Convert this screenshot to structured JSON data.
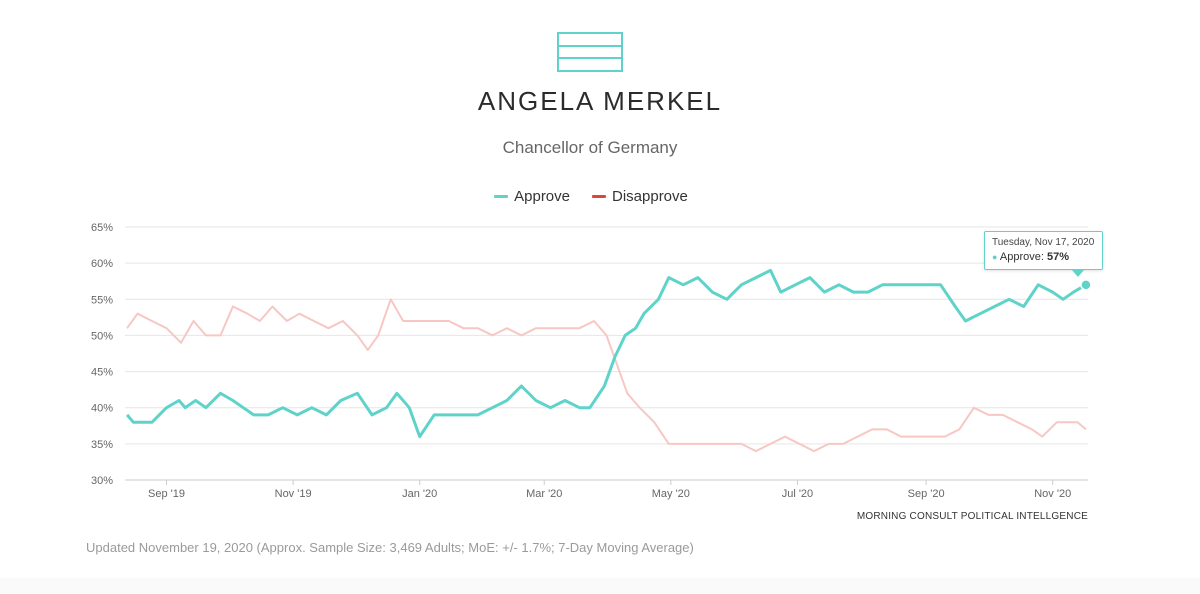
{
  "header": {
    "title": "ANGELA MERKEL",
    "subtitle": "Chancellor of Germany"
  },
  "legend": {
    "approve_label": "Approve",
    "disapprove_label": "Disapprove"
  },
  "tooltip": {
    "date": "Tuesday, Nov 17, 2020",
    "series_label": "Approve:",
    "value": "57%"
  },
  "credit": "MORNING CONSULT POLITICAL INTELLGENCE",
  "footer_note": "Updated November 19, 2020 (Approx. Sample Size: 3,469 Adults; MoE: +/- 1.7%; 7-Day Moving Average)",
  "colors": {
    "approve": "#5fd3c9",
    "disapprove": "#f7c7c3",
    "disapprove_legend": "#e0453a",
    "grid": "#e6e6e6"
  },
  "chart_data": {
    "type": "line",
    "ylim": [
      30,
      65
    ],
    "y_ticks": [
      "30%",
      "35%",
      "40%",
      "45%",
      "50%",
      "55%",
      "60%",
      "65%"
    ],
    "x_ticks": [
      "Sep '19",
      "Nov '19",
      "Jan '20",
      "Mar '20",
      "May '20",
      "Jul '20",
      "Sep '20",
      "Nov '20"
    ],
    "x_range": [
      "2019-08-12",
      "2020-11-18"
    ],
    "grid": true,
    "legend_position": "top-center",
    "series": [
      {
        "name": "Approve",
        "color": "#5fd3c9",
        "points": [
          [
            "2019-08-13",
            39
          ],
          [
            "2019-08-16",
            38
          ],
          [
            "2019-08-25",
            38
          ],
          [
            "2019-09-01",
            40
          ],
          [
            "2019-09-07",
            41
          ],
          [
            "2019-09-10",
            40
          ],
          [
            "2019-09-15",
            41
          ],
          [
            "2019-09-20",
            40
          ],
          [
            "2019-09-27",
            42
          ],
          [
            "2019-10-03",
            41
          ],
          [
            "2019-10-08",
            40
          ],
          [
            "2019-10-13",
            39
          ],
          [
            "2019-10-20",
            39
          ],
          [
            "2019-10-27",
            40
          ],
          [
            "2019-11-03",
            39
          ],
          [
            "2019-11-10",
            40
          ],
          [
            "2019-11-17",
            39
          ],
          [
            "2019-11-24",
            41
          ],
          [
            "2019-12-02",
            42
          ],
          [
            "2019-12-09",
            39
          ],
          [
            "2019-12-16",
            40
          ],
          [
            "2019-12-21",
            42
          ],
          [
            "2019-12-27",
            40
          ],
          [
            "2020-01-01",
            36
          ],
          [
            "2020-01-08",
            39
          ],
          [
            "2020-01-15",
            39
          ],
          [
            "2020-01-22",
            39
          ],
          [
            "2020-01-29",
            39
          ],
          [
            "2020-02-05",
            40
          ],
          [
            "2020-02-12",
            41
          ],
          [
            "2020-02-19",
            43
          ],
          [
            "2020-02-26",
            41
          ],
          [
            "2020-03-04",
            40
          ],
          [
            "2020-03-11",
            41
          ],
          [
            "2020-03-18",
            40
          ],
          [
            "2020-03-23",
            40
          ],
          [
            "2020-03-30",
            43
          ],
          [
            "2020-04-04",
            47
          ],
          [
            "2020-04-09",
            50
          ],
          [
            "2020-04-14",
            51
          ],
          [
            "2020-04-18",
            53
          ],
          [
            "2020-04-25",
            55
          ],
          [
            "2020-04-30",
            58
          ],
          [
            "2020-05-07",
            57
          ],
          [
            "2020-05-14",
            58
          ],
          [
            "2020-05-21",
            56
          ],
          [
            "2020-05-28",
            55
          ],
          [
            "2020-06-04",
            57
          ],
          [
            "2020-06-11",
            58
          ],
          [
            "2020-06-18",
            59
          ],
          [
            "2020-06-23",
            56
          ],
          [
            "2020-06-30",
            57
          ],
          [
            "2020-07-07",
            58
          ],
          [
            "2020-07-14",
            56
          ],
          [
            "2020-07-21",
            57
          ],
          [
            "2020-07-28",
            56
          ],
          [
            "2020-08-04",
            56
          ],
          [
            "2020-08-11",
            57
          ],
          [
            "2020-08-18",
            57
          ],
          [
            "2020-08-25",
            57
          ],
          [
            "2020-09-01",
            57
          ],
          [
            "2020-09-08",
            57
          ],
          [
            "2020-09-15",
            54
          ],
          [
            "2020-09-20",
            52
          ],
          [
            "2020-09-27",
            53
          ],
          [
            "2020-10-04",
            54
          ],
          [
            "2020-10-11",
            55
          ],
          [
            "2020-10-18",
            54
          ],
          [
            "2020-10-25",
            57
          ],
          [
            "2020-11-01",
            56
          ],
          [
            "2020-11-06",
            55
          ],
          [
            "2020-11-11",
            56
          ],
          [
            "2020-11-17",
            57
          ]
        ]
      },
      {
        "name": "Disapprove",
        "color": "#f7c7c3",
        "points": [
          [
            "2019-08-13",
            51
          ],
          [
            "2019-08-18",
            53
          ],
          [
            "2019-08-25",
            52
          ],
          [
            "2019-09-01",
            51
          ],
          [
            "2019-09-08",
            49
          ],
          [
            "2019-09-14",
            52
          ],
          [
            "2019-09-20",
            50
          ],
          [
            "2019-09-27",
            50
          ],
          [
            "2019-10-03",
            54
          ],
          [
            "2019-10-10",
            53
          ],
          [
            "2019-10-16",
            52
          ],
          [
            "2019-10-22",
            54
          ],
          [
            "2019-10-29",
            52
          ],
          [
            "2019-11-04",
            53
          ],
          [
            "2019-11-11",
            52
          ],
          [
            "2019-11-18",
            51
          ],
          [
            "2019-11-25",
            52
          ],
          [
            "2019-12-02",
            50
          ],
          [
            "2019-12-07",
            48
          ],
          [
            "2019-12-12",
            50
          ],
          [
            "2019-12-18",
            55
          ],
          [
            "2019-12-24",
            52
          ],
          [
            "2020-01-01",
            52
          ],
          [
            "2020-01-08",
            52
          ],
          [
            "2020-01-15",
            52
          ],
          [
            "2020-01-22",
            51
          ],
          [
            "2020-01-29",
            51
          ],
          [
            "2020-02-05",
            50
          ],
          [
            "2020-02-12",
            51
          ],
          [
            "2020-02-19",
            50
          ],
          [
            "2020-02-26",
            51
          ],
          [
            "2020-03-04",
            51
          ],
          [
            "2020-03-11",
            51
          ],
          [
            "2020-03-18",
            51
          ],
          [
            "2020-03-25",
            52
          ],
          [
            "2020-03-31",
            50
          ],
          [
            "2020-04-05",
            46
          ],
          [
            "2020-04-10",
            42
          ],
          [
            "2020-04-16",
            40
          ],
          [
            "2020-04-23",
            38
          ],
          [
            "2020-04-30",
            35
          ],
          [
            "2020-05-07",
            35
          ],
          [
            "2020-05-14",
            35
          ],
          [
            "2020-05-21",
            35
          ],
          [
            "2020-05-28",
            35
          ],
          [
            "2020-06-04",
            35
          ],
          [
            "2020-06-11",
            34
          ],
          [
            "2020-06-18",
            35
          ],
          [
            "2020-06-25",
            36
          ],
          [
            "2020-07-02",
            35
          ],
          [
            "2020-07-09",
            34
          ],
          [
            "2020-07-16",
            35
          ],
          [
            "2020-07-23",
            35
          ],
          [
            "2020-07-30",
            36
          ],
          [
            "2020-08-06",
            37
          ],
          [
            "2020-08-13",
            37
          ],
          [
            "2020-08-20",
            36
          ],
          [
            "2020-08-27",
            36
          ],
          [
            "2020-09-03",
            36
          ],
          [
            "2020-09-10",
            36
          ],
          [
            "2020-09-17",
            37
          ],
          [
            "2020-09-24",
            40
          ],
          [
            "2020-10-01",
            39
          ],
          [
            "2020-10-08",
            39
          ],
          [
            "2020-10-15",
            38
          ],
          [
            "2020-10-22",
            37
          ],
          [
            "2020-10-27",
            36
          ],
          [
            "2020-11-03",
            38
          ],
          [
            "2020-11-08",
            38
          ],
          [
            "2020-11-13",
            38
          ],
          [
            "2020-11-17",
            37
          ]
        ]
      }
    ]
  }
}
